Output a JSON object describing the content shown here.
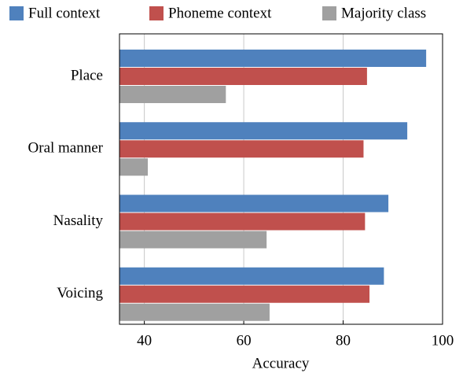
{
  "chart_data": {
    "type": "hbar",
    "xlabel": "Accuracy",
    "categories": [
      "Place",
      "Oral manner",
      "Nasality",
      "Voicing"
    ],
    "series": [
      {
        "name": "Full context",
        "color": "#4f81bd",
        "values": [
          96.7,
          92.9,
          89.1,
          88.2
        ]
      },
      {
        "name": "Phoneme context",
        "color": "#c0504d",
        "values": [
          84.8,
          84.1,
          84.4,
          85.3
        ]
      },
      {
        "name": "Majority class",
        "color": "#a0a0a0",
        "values": [
          56.4,
          40.7,
          64.6,
          65.2
        ]
      }
    ],
    "xlim": [
      35,
      100
    ],
    "xticks": [
      40,
      60,
      80,
      100
    ],
    "grid": true,
    "legend": "top"
  }
}
